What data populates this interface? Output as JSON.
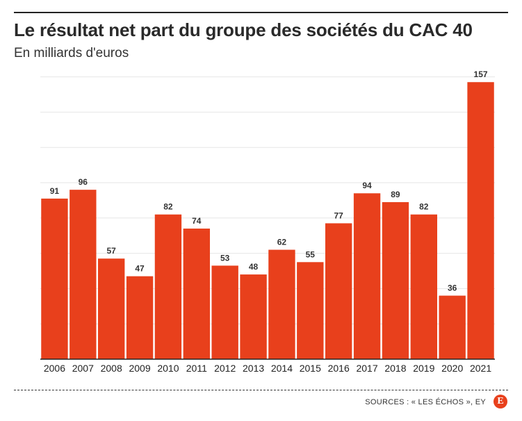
{
  "header": {
    "title": "Le résultat net part du groupe des sociétés du CAC 40",
    "subtitle": "En milliards d'euros"
  },
  "footer": {
    "source": "SOURCES : « LES ÉCHOS », EY",
    "logo_letter": "E"
  },
  "colors": {
    "bar": "#e8401c",
    "grid": "#e6e6e6",
    "axis": "#222222"
  },
  "chart_data": {
    "type": "bar",
    "categories": [
      "2006",
      "2007",
      "2008",
      "2009",
      "2010",
      "2011",
      "2012",
      "2013",
      "2014",
      "2015",
      "2016",
      "2017",
      "2018",
      "2019",
      "2020",
      "2021"
    ],
    "values": [
      91,
      96,
      57,
      47,
      82,
      74,
      53,
      48,
      62,
      55,
      77,
      94,
      89,
      82,
      36,
      157
    ],
    "title": "Le résultat net part du groupe des sociétés du CAC 40",
    "subtitle": "En milliards d'euros",
    "xlabel": "",
    "ylabel": "",
    "ylim": [
      0,
      160
    ],
    "grid": true,
    "data_labels": true,
    "legend": "none"
  }
}
